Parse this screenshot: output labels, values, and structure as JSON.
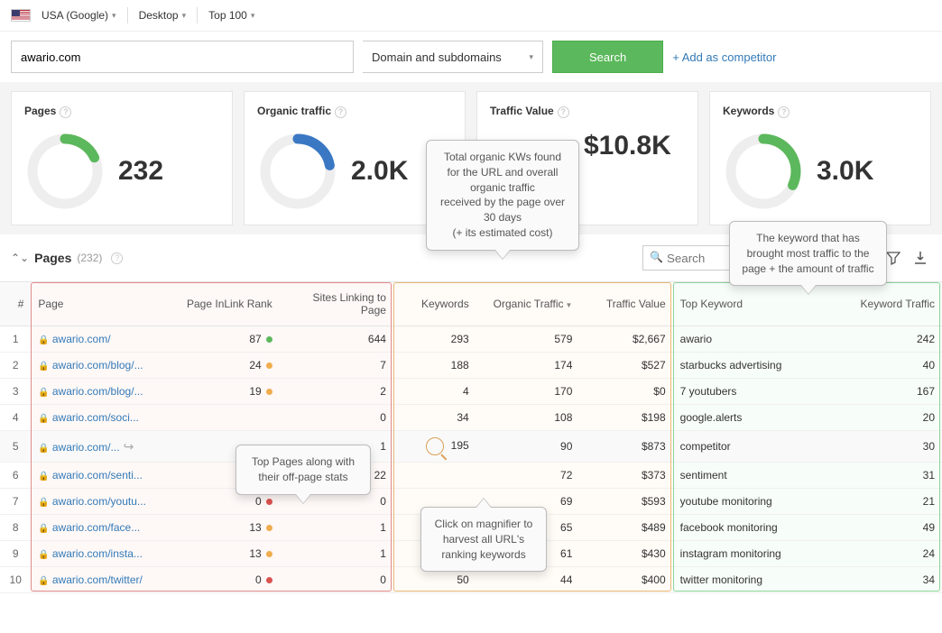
{
  "topbar": {
    "region": "USA (Google)",
    "device": "Desktop",
    "limit": "Top 100"
  },
  "search": {
    "domain_value": "awario.com",
    "scope": "Domain and subdomains",
    "button": "Search",
    "add_competitor": "+ Add as competitor"
  },
  "cards": [
    {
      "title": "Pages",
      "value": "232",
      "donut_pct": 18,
      "color": "#5cb85c"
    },
    {
      "title": "Organic traffic",
      "value": "2.0K",
      "donut_pct": 22,
      "color": "#3b78c4"
    },
    {
      "title": "Traffic Value",
      "value": "$10.8K",
      "donut_pct": 0,
      "color": "#999"
    },
    {
      "title": "Keywords",
      "value": "3.0K",
      "donut_pct": 32,
      "color": "#5cb85c"
    }
  ],
  "section": {
    "title": "Pages",
    "count": "(232)",
    "search_placeholder": "Search"
  },
  "columns": {
    "num": "#",
    "page": "Page",
    "inlink": "Page InLink Rank",
    "sites": "Sites Linking to Page",
    "keywords": "Keywords",
    "organic": "Organic Traffic",
    "tvalue": "Traffic Value",
    "topkw": "Top Keyword",
    "kwtraffic": "Keyword Traffic"
  },
  "rows": [
    {
      "n": 1,
      "url": "awario.com/",
      "rank": 87,
      "dot": "#5cb85c",
      "sites": 644,
      "kw": 293,
      "org": 579,
      "tv": "$2,667",
      "top": "awario",
      "kt": 242
    },
    {
      "n": 2,
      "url": "awario.com/blog/...",
      "rank": 24,
      "dot": "#f0ad4e",
      "sites": 7,
      "kw": 188,
      "org": 174,
      "tv": "$527",
      "top": "starbucks advertising",
      "kt": 40
    },
    {
      "n": 3,
      "url": "awario.com/blog/...",
      "rank": 19,
      "dot": "#f0ad4e",
      "sites": 2,
      "kw": 4,
      "org": 170,
      "tv": "$0",
      "top": "7 youtubers",
      "kt": 167
    },
    {
      "n": 4,
      "url": "awario.com/soci...",
      "rank": "",
      "dot": "",
      "sites": 0,
      "kw": 34,
      "org": 108,
      "tv": "$198",
      "top": "google.alerts",
      "kt": 20
    },
    {
      "n": 5,
      "url": "awario.com/...",
      "rank": "",
      "dot": "",
      "sites": 1,
      "kw": 195,
      "org": 90,
      "tv": "$873",
      "top": "competitor",
      "kt": 30,
      "hover": true,
      "magnify": true,
      "share": true
    },
    {
      "n": 6,
      "url": "awario.com/senti...",
      "rank": "",
      "dot": "",
      "sites": 22,
      "kw": "",
      "org": 72,
      "tv": "$373",
      "top": "sentiment",
      "kt": 31
    },
    {
      "n": 7,
      "url": "awario.com/youtu...",
      "rank": 0,
      "dot": "#d9534f",
      "sites": 0,
      "kw": "",
      "org": 69,
      "tv": "$593",
      "top": "youtube monitoring",
      "kt": 21
    },
    {
      "n": 8,
      "url": "awario.com/face...",
      "rank": 13,
      "dot": "#f0ad4e",
      "sites": 1,
      "kw": "",
      "org": 65,
      "tv": "$489",
      "top": "facebook monitoring",
      "kt": 49
    },
    {
      "n": 9,
      "url": "awario.com/insta...",
      "rank": 13,
      "dot": "#f0ad4e",
      "sites": 1,
      "kw": "",
      "org": 61,
      "tv": "$430",
      "top": "instagram monitoring",
      "kt": 24
    },
    {
      "n": 10,
      "url": "awario.com/twitter/",
      "rank": 0,
      "dot": "#d9534f",
      "sites": 0,
      "kw": 50,
      "org": 44,
      "tv": "$400",
      "top": "twitter monitoring",
      "kt": 34
    }
  ],
  "callouts": {
    "c1": "Total organic KWs found for the URL and overall organic traffic\nreceived by the page over 30 days\n(+ its estimated cost)",
    "c2": "The keyword that has brought most traffic to the page + the amount of traffic",
    "c3": "Top Pages along with their off-page stats",
    "c4": "Click on magnifier to harvest all URL's ranking keywords"
  },
  "group_colors": {
    "g1": "#e08b8b",
    "g2": "#e8b878",
    "g3": "#8fd49a"
  }
}
